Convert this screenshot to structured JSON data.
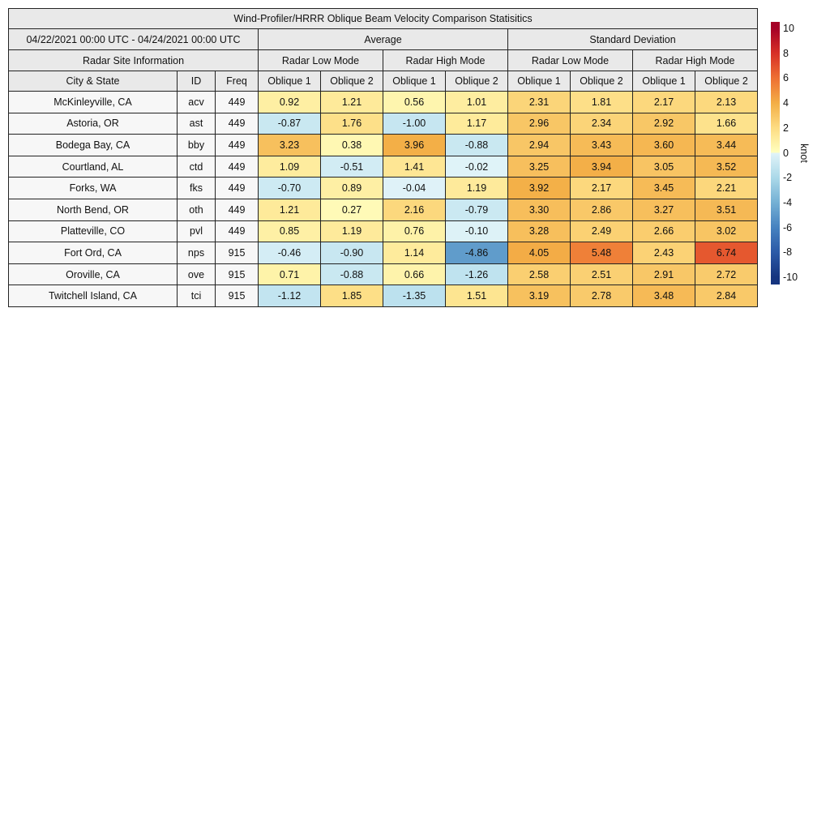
{
  "chart_data": {
    "type": "table",
    "title": "Wind-Profiler/HRRR Oblique Beam Velocity Comparison Statisitics",
    "date_range": "04/22/2021 00:00 UTC - 04/24/2021 00:00 UTC",
    "group_headers": {
      "site_info": "Radar Site Information",
      "average": "Average",
      "std_dev": "Standard Deviation",
      "low_mode": "Radar Low Mode",
      "high_mode": "Radar High Mode"
    },
    "columns": {
      "city": "City & State",
      "id": "ID",
      "freq": "Freq",
      "oblique1": "Oblique 1",
      "oblique2": "Oblique 2"
    },
    "value_columns": [
      "avg_low_oblique1",
      "avg_low_oblique2",
      "avg_high_oblique1",
      "avg_high_oblique2",
      "std_low_oblique1",
      "std_low_oblique2",
      "std_high_oblique1",
      "std_high_oblique2"
    ],
    "rows": [
      {
        "city": "McKinleyville, CA",
        "id": "acv",
        "freq": "449",
        "values": [
          "0.92",
          "1.21",
          "0.56",
          "1.01",
          "2.31",
          "1.81",
          "2.17",
          "2.13"
        ]
      },
      {
        "city": "Astoria, OR",
        "id": "ast",
        "freq": "449",
        "values": [
          "-0.87",
          "1.76",
          "-1.00",
          "1.17",
          "2.96",
          "2.34",
          "2.92",
          "1.66"
        ]
      },
      {
        "city": "Bodega Bay, CA",
        "id": "bby",
        "freq": "449",
        "values": [
          "3.23",
          "0.38",
          "3.96",
          "-0.88",
          "2.94",
          "3.43",
          "3.60",
          "3.44"
        ]
      },
      {
        "city": "Courtland, AL",
        "id": "ctd",
        "freq": "449",
        "values": [
          "1.09",
          "-0.51",
          "1.41",
          "-0.02",
          "3.25",
          "3.94",
          "3.05",
          "3.52"
        ]
      },
      {
        "city": "Forks, WA",
        "id": "fks",
        "freq": "449",
        "values": [
          "-0.70",
          "0.89",
          "-0.04",
          "1.19",
          "3.92",
          "2.17",
          "3.45",
          "2.21"
        ]
      },
      {
        "city": "North Bend, OR",
        "id": "oth",
        "freq": "449",
        "values": [
          "1.21",
          "0.27",
          "2.16",
          "-0.79",
          "3.30",
          "2.86",
          "3.27",
          "3.51"
        ]
      },
      {
        "city": "Platteville, CO",
        "id": "pvl",
        "freq": "449",
        "values": [
          "0.85",
          "1.19",
          "0.76",
          "-0.10",
          "3.28",
          "2.49",
          "2.66",
          "3.02"
        ]
      },
      {
        "city": "Fort Ord, CA",
        "id": "nps",
        "freq": "915",
        "values": [
          "-0.46",
          "-0.90",
          "1.14",
          "-4.86",
          "4.05",
          "5.48",
          "2.43",
          "6.74"
        ]
      },
      {
        "city": "Oroville, CA",
        "id": "ove",
        "freq": "915",
        "values": [
          "0.71",
          "-0.88",
          "0.66",
          "-1.26",
          "2.58",
          "2.51",
          "2.91",
          "2.72"
        ]
      },
      {
        "city": "Twitchell Island, CA",
        "id": "tci",
        "freq": "915",
        "values": [
          "-1.12",
          "1.85",
          "-1.35",
          "1.51",
          "3.19",
          "2.78",
          "3.48",
          "2.84"
        ]
      }
    ],
    "colorbar": {
      "label": "knot",
      "min": -10,
      "max": 10,
      "ticks": [
        "10",
        "8",
        "6",
        "4",
        "2",
        "0",
        "-2",
        "-4",
        "-6",
        "-8",
        "-10"
      ],
      "gradient_stops": [
        [
          10,
          "#a50026"
        ],
        [
          8,
          "#d73027"
        ],
        [
          6,
          "#ee7033"
        ],
        [
          4,
          "#f3ae46"
        ],
        [
          2,
          "#fddc82"
        ],
        [
          0.05,
          "#ffffbf"
        ],
        [
          -0.05,
          "#e0f3f8"
        ],
        [
          -2,
          "#abd9e9"
        ],
        [
          -4,
          "#74b0d4"
        ],
        [
          -6,
          "#4682c0"
        ],
        [
          -8,
          "#2b5aa7"
        ],
        [
          -10,
          "#16357f"
        ]
      ],
      "positive_stops": [
        [
          0,
          "#ffffbf"
        ],
        [
          2,
          "#fddc82"
        ],
        [
          4,
          "#f3ae46"
        ],
        [
          6,
          "#ee7033"
        ],
        [
          8,
          "#d73027"
        ],
        [
          10,
          "#a50026"
        ]
      ],
      "negative_stops": [
        [
          -10,
          "#16357f"
        ],
        [
          -8,
          "#2b5aa7"
        ],
        [
          -6,
          "#4682c0"
        ],
        [
          -4,
          "#74b0d4"
        ],
        [
          -2,
          "#abd9e9"
        ],
        [
          0,
          "#e0f3f8"
        ]
      ]
    },
    "style_colors": {
      "header_bg": "#e9e9e9",
      "site_cell_bg": "#f7f7f7",
      "grid_border": "#222222"
    }
  }
}
